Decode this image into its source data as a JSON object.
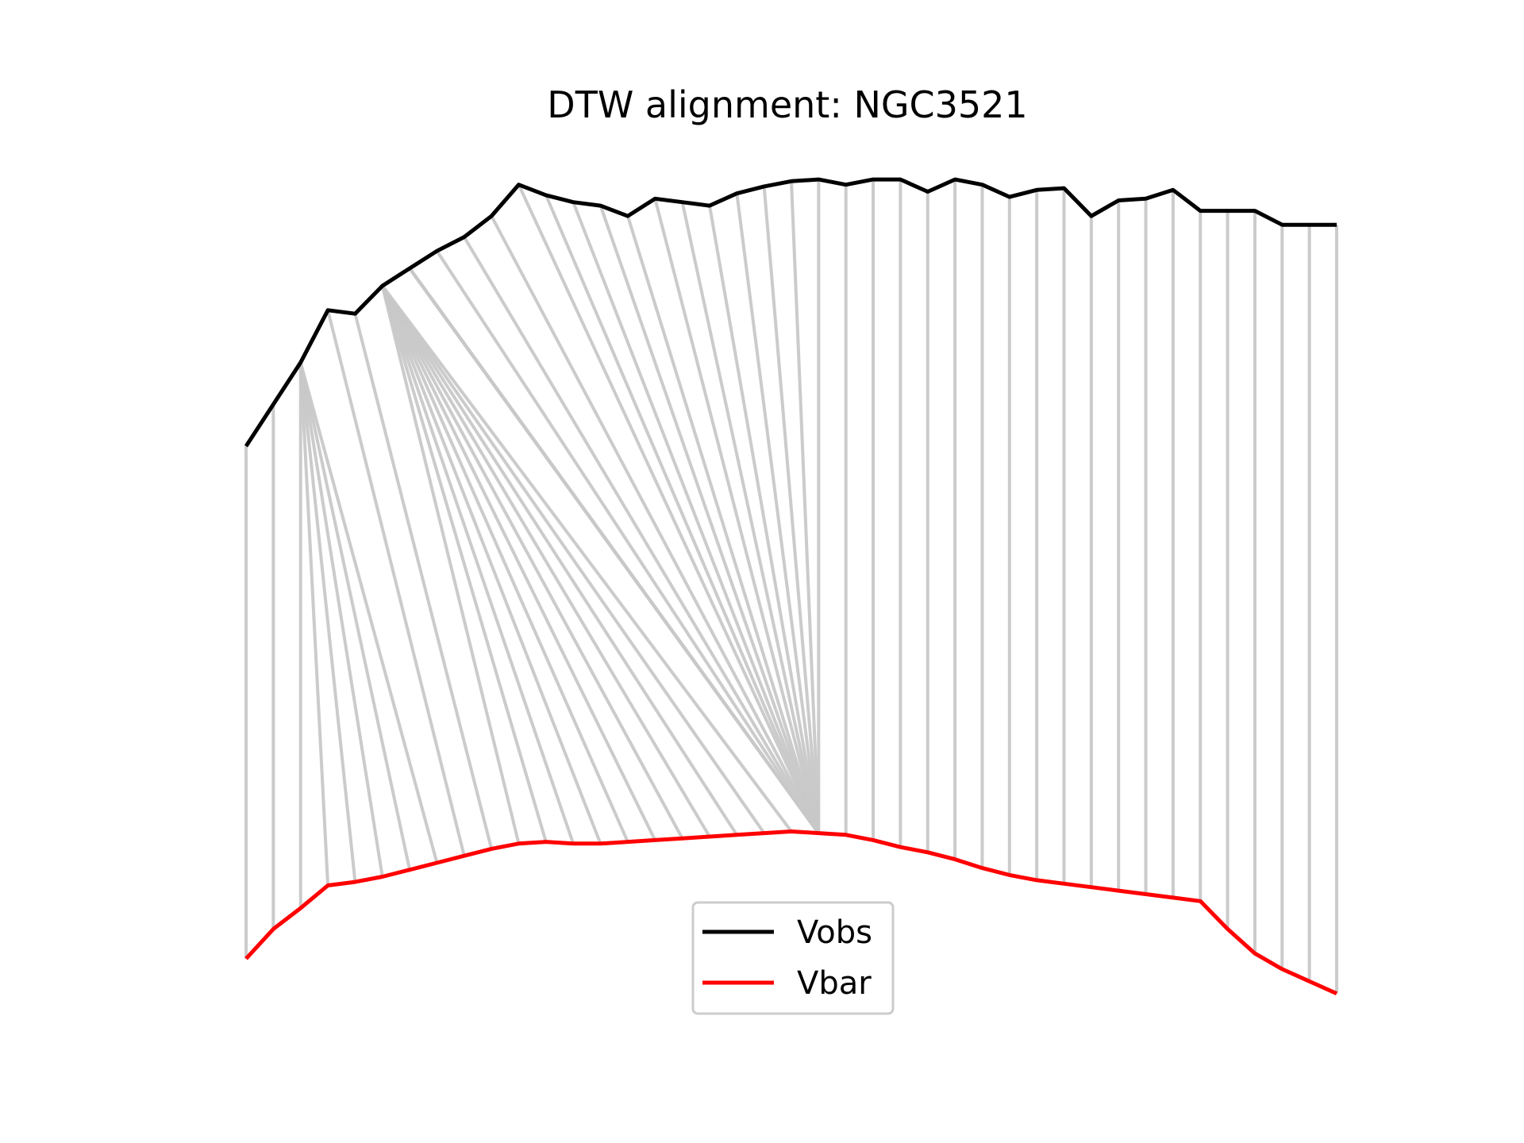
{
  "chart_data": {
    "type": "line",
    "title": "DTW alignment: NGC3521",
    "xlabel": "",
    "ylabel": "",
    "axes_visible": false,
    "grid": false,
    "legend": {
      "placement": "lower center",
      "entries": [
        "Vobs",
        "Vbar"
      ]
    },
    "x": [
      0,
      1,
      2,
      3,
      4,
      5,
      6,
      7,
      8,
      9,
      10,
      11,
      12,
      13,
      14,
      15,
      16,
      17,
      18,
      19,
      20,
      21,
      22,
      23,
      24,
      25,
      26,
      27,
      28,
      29,
      30,
      31,
      32,
      33,
      34,
      35,
      36,
      37,
      38,
      39,
      40
    ],
    "series": [
      {
        "name": "Vobs",
        "color": "#000000",
        "values": [
          0.43,
          0.55,
          0.67,
          0.82,
          0.81,
          0.89,
          0.94,
          0.99,
          1.03,
          1.09,
          1.18,
          1.15,
          1.13,
          1.12,
          1.09,
          1.14,
          1.13,
          1.12,
          1.155,
          1.175,
          1.19,
          1.195,
          1.18,
          1.195,
          1.195,
          1.16,
          1.195,
          1.18,
          1.145,
          1.165,
          1.17,
          1.09,
          1.135,
          1.14,
          1.165,
          1.105,
          1.105,
          1.105,
          1.065,
          1.065,
          1.065
        ]
      },
      {
        "name": "Vbar",
        "color": "#ff0000",
        "values": [
          -1.04,
          -0.955,
          -0.895,
          -0.83,
          -0.82,
          -0.805,
          -0.785,
          -0.765,
          -0.745,
          -0.725,
          -0.71,
          -0.705,
          -0.71,
          -0.71,
          -0.705,
          -0.7,
          -0.695,
          -0.69,
          -0.685,
          -0.68,
          -0.675,
          -0.68,
          -0.685,
          -0.7,
          -0.72,
          -0.735,
          -0.755,
          -0.78,
          -0.8,
          -0.815,
          -0.825,
          -0.835,
          -0.845,
          -0.855,
          -0.865,
          -0.875,
          -0.955,
          -1.025,
          -1.07,
          -1.105,
          -1.14
        ]
      }
    ],
    "alignment": {
      "color": "#c8c8c8",
      "pairs": [
        [
          0,
          0
        ],
        [
          1,
          1
        ],
        [
          2,
          2
        ],
        [
          2,
          3
        ],
        [
          2,
          4
        ],
        [
          2,
          5
        ],
        [
          2,
          6
        ],
        [
          2,
          7
        ],
        [
          3,
          8
        ],
        [
          4,
          9
        ],
        [
          5,
          10
        ],
        [
          5,
          11
        ],
        [
          5,
          12
        ],
        [
          5,
          13
        ],
        [
          5,
          14
        ],
        [
          5,
          15
        ],
        [
          5,
          16
        ],
        [
          5,
          17
        ],
        [
          5,
          18
        ],
        [
          5,
          19
        ],
        [
          5,
          20
        ],
        [
          6,
          21
        ],
        [
          6,
          21
        ],
        [
          6,
          21
        ],
        [
          6,
          21
        ],
        [
          6,
          21
        ],
        [
          6,
          21
        ],
        [
          6,
          21
        ],
        [
          6,
          21
        ],
        [
          6,
          21
        ],
        [
          6,
          21
        ],
        [
          6,
          21
        ],
        [
          6,
          21
        ],
        [
          6,
          21
        ],
        [
          6,
          21
        ],
        [
          6,
          21
        ],
        [
          7,
          21
        ],
        [
          8,
          21
        ],
        [
          9,
          21
        ],
        [
          10,
          21
        ],
        [
          11,
          21
        ],
        [
          12,
          21
        ],
        [
          13,
          21
        ],
        [
          14,
          21
        ],
        [
          15,
          21
        ],
        [
          16,
          21
        ],
        [
          17,
          21
        ],
        [
          18,
          21
        ],
        [
          19,
          21
        ],
        [
          20,
          21
        ],
        [
          21,
          21
        ],
        [
          22,
          22
        ],
        [
          23,
          23
        ],
        [
          24,
          24
        ],
        [
          25,
          25
        ],
        [
          26,
          26
        ],
        [
          27,
          27
        ],
        [
          28,
          28
        ],
        [
          29,
          29
        ],
        [
          30,
          30
        ],
        [
          31,
          31
        ],
        [
          32,
          32
        ],
        [
          33,
          33
        ],
        [
          34,
          34
        ],
        [
          35,
          35
        ],
        [
          36,
          36
        ],
        [
          37,
          37
        ],
        [
          38,
          38
        ],
        [
          39,
          39
        ],
        [
          40,
          40
        ]
      ]
    }
  }
}
